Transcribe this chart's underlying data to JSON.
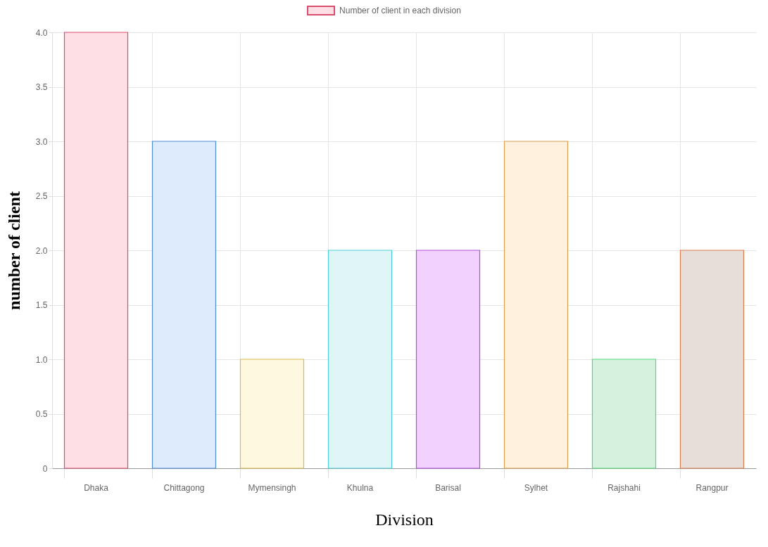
{
  "chart_data": {
    "type": "bar",
    "xlabel": "Division",
    "ylabel": "number of client",
    "categories": [
      "Dhaka",
      "Chittagong",
      "Mymensingh",
      "Khulna",
      "Barisal",
      "Sylhet",
      "Rajshahi",
      "Rangpur"
    ],
    "series": [
      {
        "name": "Number of client in each division",
        "colors": [
          "#ffdfe6",
          "#deebfc",
          "#fff8e0",
          "#e0f5f7",
          "#f2d1ff",
          "#fff1dd",
          "#d6f2df",
          "#e8ded9"
        ],
        "values": [
          4,
          3,
          1,
          2,
          2,
          3,
          1,
          2
        ]
      }
    ],
    "ylim": [
      0,
      4
    ],
    "yticks": [
      {
        "value": 0,
        "label": "0"
      },
      {
        "value": 0.5,
        "label": "0.5"
      },
      {
        "value": 1,
        "label": "1.0"
      },
      {
        "value": 1.5,
        "label": "1.5"
      },
      {
        "value": 2,
        "label": "2.0"
      },
      {
        "value": 2.5,
        "label": "2.5"
      },
      {
        "value": 3,
        "label": "3.0"
      },
      {
        "value": 3.5,
        "label": "3.5"
      },
      {
        "value": 4,
        "label": "4.0"
      }
    ],
    "grid": true,
    "legend": "top"
  }
}
